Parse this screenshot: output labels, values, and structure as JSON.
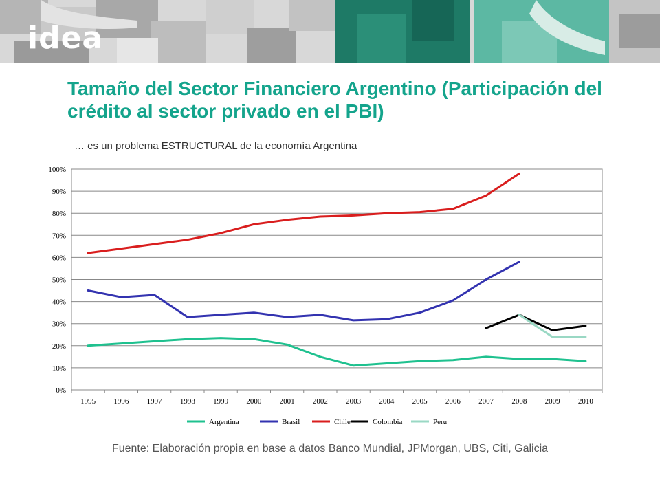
{
  "header": {
    "logo_text": "idea"
  },
  "slide": {
    "title": "Tamaño del Sector Financiero Argentino (Participación del crédito al sector privado en el PBI)",
    "subtitle": "… es un problema ESTRUCTURAL de la economía Argentina",
    "source": "Fuente: Elaboración propia en base a datos Banco Mundial, JPMorgan, UBS, Citi, Galicia"
  },
  "colors": {
    "accent": "#14a48c",
    "banner_dark": "#1e7a66",
    "banner_light": "#5cb8a3"
  },
  "chart_data": {
    "type": "line",
    "title": "",
    "xlabel": "",
    "ylabel": "",
    "categories": [
      "1995",
      "1996",
      "1997",
      "1998",
      "1999",
      "2000",
      "2001",
      "2002",
      "2003",
      "2004",
      "2005",
      "2006",
      "2007",
      "2008",
      "2009",
      "2010"
    ],
    "y_ticks": [
      "0%",
      "10%",
      "20%",
      "30%",
      "40%",
      "50%",
      "60%",
      "70%",
      "80%",
      "90%",
      "100%"
    ],
    "ylim": [
      0,
      100
    ],
    "grid": true,
    "legend_position": "bottom",
    "series": [
      {
        "name": "Argentina",
        "color": "#1fc18f",
        "values": [
          20,
          21,
          22,
          23,
          23.5,
          23,
          20.5,
          15,
          11,
          12,
          13,
          13.5,
          15,
          14,
          14,
          13
        ]
      },
      {
        "name": "Brasil",
        "color": "#3333b0",
        "values": [
          45,
          42,
          43,
          33,
          34,
          35,
          33,
          34,
          31.5,
          32,
          35,
          40.5,
          50,
          58,
          null,
          null
        ]
      },
      {
        "name": "Chile",
        "color": "#d91e1e",
        "values": [
          62,
          64,
          66,
          68,
          71,
          75,
          77,
          78.5,
          79,
          80,
          80.5,
          82,
          88,
          98,
          null,
          null
        ]
      },
      {
        "name": "Colombia",
        "color": "#000000",
        "values": [
          null,
          null,
          null,
          null,
          null,
          null,
          null,
          null,
          null,
          null,
          null,
          null,
          28,
          34,
          27,
          29
        ]
      },
      {
        "name": "Peru",
        "color": "#9ad8c4",
        "values": [
          null,
          null,
          null,
          null,
          null,
          null,
          null,
          null,
          null,
          null,
          null,
          null,
          null,
          34,
          24,
          24
        ]
      }
    ]
  }
}
